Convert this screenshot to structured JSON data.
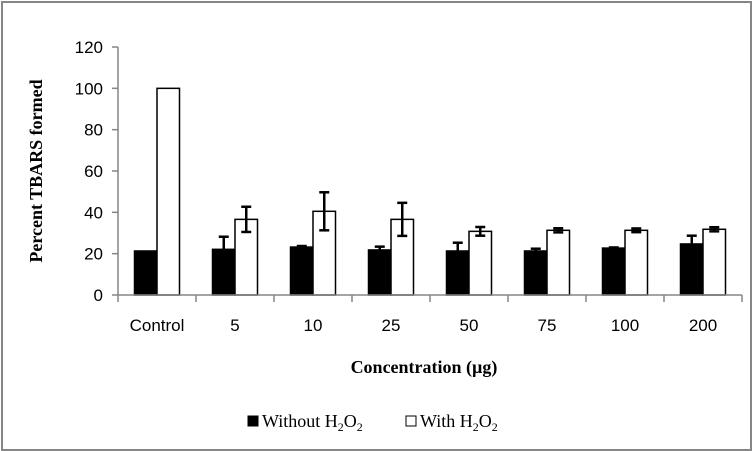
{
  "chart_data": {
    "type": "bar",
    "title": "",
    "xlabel": "Concentration (µg)",
    "ylabel": "Percent TBARS formed",
    "ylim": [
      0,
      120
    ],
    "yticks": [
      "0",
      "20",
      "40",
      "60",
      "80",
      "100",
      "120"
    ],
    "ytick_values": [
      0,
      20,
      40,
      60,
      80,
      100,
      120
    ],
    "categories": [
      "Control",
      "5",
      "10",
      "25",
      "50",
      "75",
      "100",
      "200"
    ],
    "grid": false,
    "legend_position": "bottom",
    "series": [
      {
        "name": "Without H2O2",
        "legend_main": "Without H",
        "legend_sub1": "2",
        "legend_mid": "O",
        "legend_sub2": "2",
        "color": "#000000",
        "values": [
          21.3,
          22.1,
          23.2,
          21.8,
          21.3,
          21.3,
          22.7,
          24.7
        ],
        "errors": [
          0,
          6.1,
          0.5,
          1.6,
          4.0,
          1.1,
          0.3,
          4.0
        ]
      },
      {
        "name": "With H2O2",
        "legend_main": "With H",
        "legend_sub1": "2",
        "legend_mid": "O",
        "legend_sub2": "2",
        "color": "#ffffff",
        "values": [
          100,
          36.6,
          40.5,
          36.6,
          30.8,
          31.3,
          31.3,
          31.8
        ],
        "errors": [
          0,
          6.1,
          9.2,
          8.0,
          2.1,
          1.0,
          0.9,
          1.0
        ]
      }
    ]
  },
  "colors": {
    "axis": "#868686",
    "frame": "#868686",
    "bar_outline": "#000000"
  }
}
